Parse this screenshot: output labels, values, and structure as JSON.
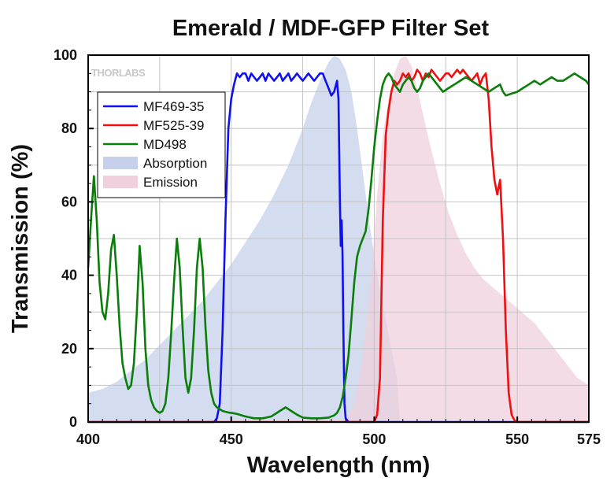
{
  "chart_data": {
    "type": "area",
    "title": "Emerald / MDF-GFP Filter Set",
    "xlabel": "Wavelength (nm)",
    "ylabel": "Transmission (%)",
    "xlim": [
      400,
      575
    ],
    "ylim": [
      0,
      100
    ],
    "xticks": [
      400,
      450,
      500,
      550,
      575
    ],
    "yticks": [
      0,
      20,
      40,
      60,
      80,
      100
    ],
    "grid": true,
    "legend_position": "top-left",
    "watermark": "THORLABS",
    "series": [
      {
        "name": "MF469-35",
        "kind": "line",
        "color": "#1010ee",
        "x": [
          400,
          444,
          445,
          446,
          447,
          448,
          449,
          450,
          451,
          452,
          453,
          454,
          455,
          456,
          457,
          458,
          459,
          460,
          461,
          462,
          463,
          464,
          465,
          466,
          467,
          468,
          469,
          470,
          471,
          472,
          473,
          474,
          475,
          476,
          477,
          478,
          479,
          480,
          481,
          482,
          483,
          484,
          485,
          486,
          487,
          487.5,
          488,
          488.3,
          488.6,
          488.9,
          489.2,
          489.6,
          490,
          491,
          575
        ],
        "y": [
          0,
          0,
          1,
          5,
          25,
          55,
          80,
          88,
          92,
          95,
          94,
          95,
          95,
          93,
          95,
          94,
          93,
          94,
          95,
          93,
          95,
          94,
          93,
          94,
          95,
          93,
          94,
          95,
          93,
          94,
          95,
          94,
          93,
          94,
          95,
          94,
          93,
          94,
          95,
          95,
          93,
          91,
          89,
          90,
          93,
          88,
          60,
          48,
          55,
          46,
          25,
          5,
          1,
          0,
          0
        ]
      },
      {
        "name": "MF525-39",
        "kind": "line",
        "color": "#ee1010",
        "x": [
          400,
          500,
          501,
          502,
          503,
          504,
          505,
          506,
          507,
          508,
          509,
          510,
          511,
          512,
          513,
          514,
          515,
          516,
          517,
          518,
          519,
          520,
          521,
          522,
          523,
          524,
          525,
          526,
          527,
          528,
          529,
          530,
          531,
          532,
          533,
          534,
          535,
          536,
          537,
          538,
          539,
          540,
          541,
          542,
          543,
          544,
          545,
          546,
          547,
          548,
          549,
          550,
          551,
          575
        ],
        "y": [
          0,
          0,
          2,
          12,
          55,
          78,
          85,
          90,
          93,
          92,
          93,
          95,
          94,
          95,
          93,
          94,
          96,
          95,
          93,
          95,
          94,
          96,
          95,
          94,
          93,
          94,
          95,
          95,
          94,
          95,
          96,
          95,
          96,
          95,
          94,
          93,
          94,
          95,
          92,
          94,
          95,
          88,
          75,
          66,
          62,
          66,
          50,
          25,
          8,
          2,
          0.5,
          0,
          0,
          0
        ]
      },
      {
        "name": "MD498",
        "kind": "line",
        "color": "#0a7d0a",
        "x": [
          400,
          401,
          402,
          403,
          404,
          405,
          406,
          407,
          408,
          409,
          410,
          411,
          412,
          413,
          414,
          415,
          416,
          417,
          418,
          419,
          420,
          421,
          422,
          423,
          424,
          425,
          426,
          427,
          428,
          429,
          430,
          431,
          432,
          433,
          434,
          435,
          436,
          437,
          438,
          439,
          440,
          441,
          442,
          443,
          444,
          445,
          446,
          447,
          448,
          449,
          450,
          452,
          455,
          458,
          461,
          464,
          467,
          469,
          471,
          473,
          475,
          478,
          481,
          484,
          486,
          487,
          488,
          489,
          490,
          491,
          492,
          493,
          494,
          495,
          496,
          497,
          498,
          499,
          500,
          501,
          502,
          503,
          504,
          505,
          506,
          507,
          508,
          509,
          510,
          511,
          512,
          513,
          514,
          515,
          516,
          517,
          518,
          519,
          520,
          521,
          522,
          523,
          524,
          526,
          528,
          530,
          532,
          534,
          536,
          538,
          540,
          542,
          544,
          545,
          546,
          548,
          550,
          552,
          554,
          556,
          558,
          560,
          562,
          564,
          566,
          568,
          570,
          572,
          574,
          575
        ],
        "y": [
          42,
          55,
          67,
          55,
          38,
          30,
          28,
          35,
          47,
          51,
          40,
          26,
          16,
          12,
          9,
          10,
          16,
          30,
          48,
          38,
          20,
          10,
          6,
          4,
          3,
          2.5,
          3,
          5,
          12,
          24,
          38,
          50,
          42,
          26,
          12,
          8,
          12,
          25,
          42,
          50,
          42,
          26,
          14,
          8,
          5,
          4,
          3.5,
          3,
          2.8,
          2.6,
          2.5,
          2.2,
          1.5,
          1,
          1,
          1.5,
          3,
          4,
          3,
          2,
          1.2,
          1,
          1,
          1.2,
          1.8,
          2.5,
          4,
          7,
          12,
          18,
          28,
          38,
          45,
          48,
          50,
          52,
          58,
          66,
          75,
          82,
          88,
          92,
          94,
          95,
          94,
          92,
          91,
          90,
          92,
          93,
          94,
          93,
          91,
          90,
          91,
          93,
          94,
          95,
          94,
          93,
          92,
          91,
          90,
          91,
          92,
          93,
          94,
          93,
          92,
          91,
          90,
          91,
          92,
          90,
          89,
          89.5,
          90,
          91,
          92,
          93,
          92,
          93,
          94,
          93,
          93,
          94,
          95,
          94,
          93,
          92
        ],
        "note_y_values_derived_from": "axis"
      },
      {
        "name": "Absorption",
        "kind": "area",
        "color": "#c5d0ea",
        "x": [
          400,
          405,
          410,
          415,
          420,
          425,
          430,
          435,
          440,
          445,
          450,
          455,
          460,
          465,
          470,
          475,
          478,
          481,
          484,
          486,
          488,
          490,
          492,
          494,
          496,
          498,
          500,
          502,
          504,
          506,
          508,
          509
        ],
        "y": [
          8,
          9,
          11,
          14,
          17,
          21,
          25,
          29,
          33,
          38,
          43,
          49,
          55,
          62,
          70,
          80,
          87,
          93,
          98,
          100,
          99,
          96,
          90,
          80,
          68,
          56,
          45,
          36,
          28,
          20,
          12,
          0
        ]
      },
      {
        "name": "Emission",
        "kind": "area",
        "color": "#efd0dc",
        "x": [
          490,
          493,
          496,
          499,
          501,
          503,
          505,
          507,
          509,
          511,
          513,
          515,
          517,
          520,
          523,
          526,
          529,
          532,
          535,
          538,
          541,
          544,
          547,
          550,
          553,
          556,
          559,
          562,
          565,
          568,
          571,
          575
        ],
        "y": [
          0,
          5,
          18,
          40,
          62,
          78,
          88,
          95,
          99,
          100,
          97,
          91,
          84,
          74,
          65,
          57,
          51,
          46,
          42,
          39,
          37,
          35,
          33,
          31,
          29,
          27,
          24,
          21,
          18,
          15,
          12,
          10
        ]
      }
    ]
  }
}
